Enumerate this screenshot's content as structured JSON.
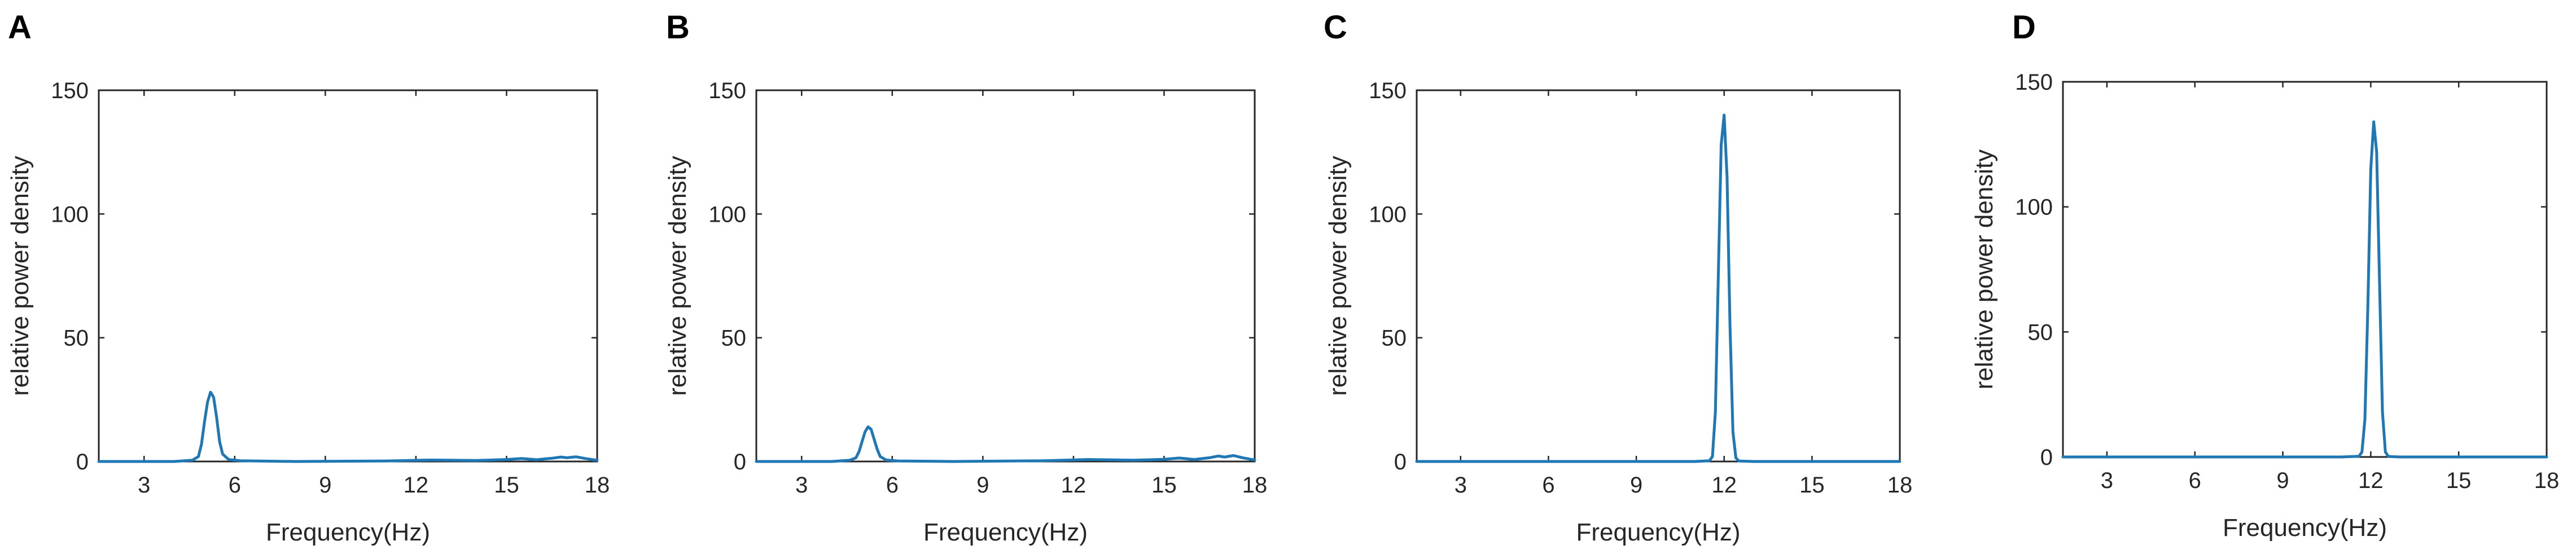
{
  "figure": {
    "line_color": "#1f77b4"
  },
  "chart_data": [
    {
      "panel": "A",
      "type": "line",
      "xlabel": "Frequency(Hz)",
      "ylabel": "relative power density",
      "xlim": [
        1.5,
        18
      ],
      "ylim": [
        0,
        150
      ],
      "xticks": [
        3,
        6,
        9,
        12,
        15,
        18
      ],
      "yticks": [
        0,
        50,
        100,
        150
      ],
      "grid": false,
      "series": [
        {
          "x": [
            1.5,
            4.0,
            4.6,
            4.8,
            4.9,
            5.0,
            5.1,
            5.2,
            5.3,
            5.4,
            5.5,
            5.6,
            5.8,
            6.2,
            8.0,
            11.0,
            12.5,
            14.0,
            15.0,
            15.5,
            16.0,
            16.5,
            16.8,
            17.0,
            17.3,
            17.6,
            18.0
          ],
          "y": [
            0,
            0,
            0.5,
            2,
            7,
            16,
            24,
            28,
            26,
            18,
            8,
            3,
            0.8,
            0.3,
            0,
            0.2,
            0.6,
            0.4,
            0.8,
            1.2,
            0.7,
            1.3,
            1.8,
            1.5,
            1.9,
            1.2,
            0.5
          ]
        }
      ]
    },
    {
      "panel": "B",
      "type": "line",
      "xlabel": "Frequency(Hz)",
      "ylabel": "relative power density",
      "xlim": [
        1.5,
        18
      ],
      "ylim": [
        0,
        150
      ],
      "xticks": [
        3,
        6,
        9,
        12,
        15,
        18
      ],
      "yticks": [
        0,
        50,
        100,
        150
      ],
      "grid": false,
      "series": [
        {
          "x": [
            1.5,
            4.0,
            4.6,
            4.8,
            4.9,
            5.0,
            5.1,
            5.2,
            5.3,
            5.4,
            5.5,
            5.6,
            5.8,
            6.2,
            8.0,
            11.0,
            12.5,
            14.0,
            15.0,
            15.5,
            16.0,
            16.5,
            16.8,
            17.0,
            17.3,
            17.6,
            18.0
          ],
          "y": [
            0,
            0,
            0.5,
            1.5,
            4,
            8,
            12,
            14,
            13,
            9,
            5,
            2,
            0.6,
            0.2,
            0,
            0.3,
            0.8,
            0.5,
            0.9,
            1.4,
            0.8,
            1.5,
            2.2,
            1.8,
            2.4,
            1.5,
            0.6
          ]
        }
      ]
    },
    {
      "panel": "C",
      "type": "line",
      "xlabel": "Frequency(Hz)",
      "ylabel": "relative power density",
      "xlim": [
        1.5,
        18
      ],
      "ylim": [
        0,
        150
      ],
      "xticks": [
        3,
        6,
        9,
        12,
        15,
        18
      ],
      "yticks": [
        0,
        50,
        100,
        150
      ],
      "grid": false,
      "series": [
        {
          "x": [
            1.5,
            11.0,
            11.5,
            11.6,
            11.7,
            11.8,
            11.9,
            12.0,
            12.1,
            12.2,
            12.3,
            12.4,
            12.5,
            13.0,
            18.0
          ],
          "y": [
            0,
            0,
            0.3,
            2,
            20,
            75,
            128,
            140,
            115,
            55,
            12,
            1.5,
            0.2,
            0,
            0
          ]
        }
      ]
    },
    {
      "panel": "D",
      "type": "line",
      "xlabel": "Frequency(Hz)",
      "ylabel": "relative power density",
      "xlim": [
        1.5,
        18
      ],
      "ylim": [
        0,
        150
      ],
      "xticks": [
        3,
        6,
        9,
        12,
        15,
        18
      ],
      "yticks": [
        0,
        50,
        100,
        150
      ],
      "grid": false,
      "series": [
        {
          "x": [
            1.5,
            11.0,
            11.6,
            11.7,
            11.8,
            11.9,
            12.0,
            12.1,
            12.2,
            12.3,
            12.4,
            12.5,
            12.6,
            13.0,
            18.0
          ],
          "y": [
            0,
            0,
            0.3,
            2,
            15,
            60,
            115,
            134,
            122,
            70,
            18,
            2,
            0.2,
            0,
            0
          ]
        }
      ]
    }
  ]
}
